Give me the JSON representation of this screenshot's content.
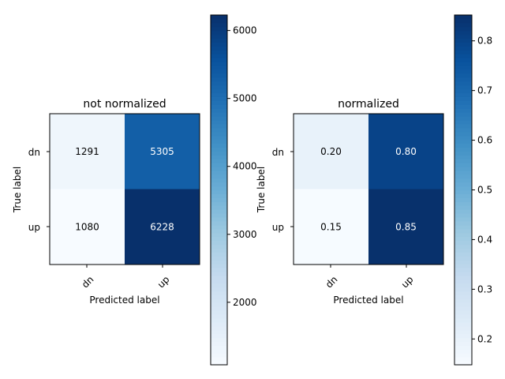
{
  "chart_data": [
    {
      "type": "heatmap",
      "title": "not normalized",
      "xlabel": "Predicted label",
      "ylabel": "True label",
      "x_categories": [
        "dn",
        "up"
      ],
      "y_categories": [
        "dn",
        "up"
      ],
      "values": [
        [
          1291,
          5305
        ],
        [
          1080,
          6228
        ]
      ],
      "value_labels": [
        [
          "1291",
          "5305"
        ],
        [
          "1080",
          "6228"
        ]
      ],
      "colorscale": "Blues",
      "colorbar": {
        "min": 1080,
        "max": 6228,
        "ticks": [
          2000,
          3000,
          4000,
          5000,
          6000
        ],
        "tick_labels": [
          "2000",
          "3000",
          "4000",
          "5000",
          "6000"
        ]
      }
    },
    {
      "type": "heatmap",
      "title": "normalized",
      "xlabel": "Predicted label",
      "ylabel": "True label",
      "x_categories": [
        "dn",
        "up"
      ],
      "y_categories": [
        "dn",
        "up"
      ],
      "values": [
        [
          0.2,
          0.8
        ],
        [
          0.15,
          0.85
        ]
      ],
      "value_labels": [
        [
          "0.20",
          "0.80"
        ],
        [
          "0.15",
          "0.85"
        ]
      ],
      "colorscale": "Blues",
      "colorbar": {
        "min": 0.148,
        "max": 0.852,
        "ticks": [
          0.2,
          0.3,
          0.4,
          0.5,
          0.6,
          0.7,
          0.8
        ],
        "tick_labels": [
          "0.2",
          "0.3",
          "0.4",
          "0.5",
          "0.6",
          "0.7",
          "0.8"
        ]
      }
    }
  ]
}
